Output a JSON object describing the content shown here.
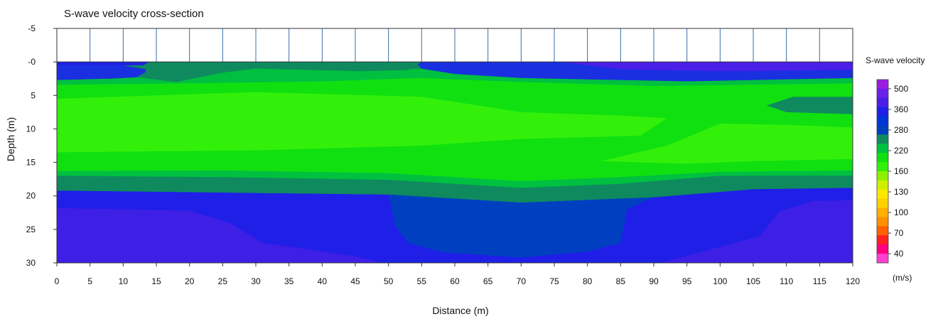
{
  "chart_data": {
    "type": "heatmap",
    "subtype": "filled-contour cross-section",
    "title": "S-wave velocity cross-section",
    "xlabel": "Distance (m)",
    "ylabel": "Depth (m)",
    "xlim": [
      0,
      120
    ],
    "ylim": [
      -5,
      30
    ],
    "y_inverted": true,
    "x_ticks": [
      0,
      5,
      10,
      15,
      20,
      25,
      30,
      35,
      40,
      45,
      50,
      55,
      60,
      65,
      70,
      75,
      80,
      85,
      90,
      95,
      100,
      105,
      110,
      115,
      120
    ],
    "y_ticks": [
      -5,
      0,
      5,
      10,
      15,
      20,
      25,
      30
    ],
    "y_tick_labels": [
      "-5",
      "-0",
      "5",
      "10",
      "15",
      "20",
      "25",
      "30"
    ],
    "grid": false,
    "receivers": {
      "positions": [
        5,
        10,
        15,
        20,
        25,
        30,
        35,
        40,
        45,
        50,
        55,
        60,
        65,
        70,
        75,
        80,
        85,
        90,
        95,
        100,
        105,
        110,
        115
      ],
      "depth_top": -5,
      "depth_bottom": 0
    },
    "colorbar": {
      "title": "S-wave velocity",
      "unit_label": "(m/s)",
      "placement": "right",
      "tick_labels": [
        "500",
        "360",
        "280",
        "220",
        "160",
        "130",
        "100",
        "70",
        "40"
      ],
      "levels": [
        {
          "min": 470,
          "color": "#9b1ee0"
        },
        {
          "min": 430,
          "color": "#6a22e8"
        },
        {
          "min": 390,
          "color": "#4b1ee8"
        },
        {
          "min": 360,
          "color": "#1f1fe8"
        },
        {
          "min": 330,
          "color": "#0036d8"
        },
        {
          "min": 300,
          "color": "#0040c0"
        },
        {
          "min": 280,
          "color": "#0f8a5f"
        },
        {
          "min": 260,
          "color": "#00c040"
        },
        {
          "min": 240,
          "color": "#10e010"
        },
        {
          "min": 220,
          "color": "#33f00a"
        },
        {
          "min": 190,
          "color": "#8cf000"
        },
        {
          "min": 160,
          "color": "#ccf000"
        },
        {
          "min": 145,
          "color": "#ffe800"
        },
        {
          "min": 130,
          "color": "#ffd000"
        },
        {
          "min": 115,
          "color": "#ffb000"
        },
        {
          "min": 100,
          "color": "#ff9000"
        },
        {
          "min": 85,
          "color": "#ff6000"
        },
        {
          "min": 70,
          "color": "#ff2020"
        },
        {
          "min": 55,
          "color": "#ff0080"
        },
        {
          "min": 40,
          "color": "#ff40d0"
        }
      ]
    },
    "regions": [
      {
        "label": "deep high-velocity zone",
        "color": "#3d1fe6",
        "velocity_range": [
          390,
          430
        ],
        "points": [
          [
            0,
            30
          ],
          [
            0,
            21.8
          ],
          [
            20,
            22.2
          ],
          [
            26,
            24
          ],
          [
            31,
            27
          ],
          [
            45,
            29
          ],
          [
            49,
            30
          ]
        ]
      },
      {
        "label": "deep high-velocity zone",
        "color": "#3d1fe6",
        "velocity_range": [
          390,
          430
        ],
        "points": [
          [
            91,
            30
          ],
          [
            100,
            27.6
          ],
          [
            106,
            26
          ],
          [
            109,
            22.3
          ],
          [
            114,
            20.8
          ],
          [
            120,
            20.6
          ],
          [
            120,
            30
          ]
        ]
      },
      {
        "label": "upper-left blue lens",
        "color": "#1a2fe0",
        "velocity_range": [
          330,
          360
        ],
        "points": [
          [
            0,
            0.5
          ],
          [
            10,
            0.5
          ],
          [
            14,
            1.2
          ],
          [
            12,
            2.3
          ],
          [
            8,
            2.5
          ],
          [
            0,
            2.7
          ]
        ]
      },
      {
        "label": "top blue band",
        "color": "#1a2fe0",
        "velocity_range": [
          330,
          360
        ],
        "points": [
          [
            54,
            0
          ],
          [
            120,
            0
          ],
          [
            120,
            2.4
          ],
          [
            95,
            2.9
          ],
          [
            70,
            2.4
          ],
          [
            60,
            1.8
          ],
          [
            55,
            1.0
          ]
        ]
      },
      {
        "label": "top-right purple band",
        "color": "#4a1fe8",
        "velocity_range": [
          360,
          390
        ],
        "points": [
          [
            76,
            0
          ],
          [
            120,
            0
          ],
          [
            120,
            1.2
          ],
          [
            100,
            1.4
          ],
          [
            85,
            1.1
          ]
        ]
      },
      {
        "label": "upper dark-green wedges",
        "color": "#0f8a5f",
        "velocity_range": [
          280,
          300
        ],
        "points": [
          [
            14,
            0
          ],
          [
            27,
            0
          ],
          [
            25,
            1.6
          ],
          [
            18,
            3.0
          ],
          [
            13,
            2.2
          ]
        ]
      },
      {
        "label": "upper dark-green wedges",
        "color": "#0f8a5f",
        "velocity_range": [
          280,
          300
        ],
        "points": [
          [
            45,
            0
          ],
          [
            55,
            0
          ],
          [
            53,
            1.2
          ],
          [
            46,
            1.4
          ]
        ]
      },
      {
        "label": "right dark-green lens",
        "color": "#0f8a5f",
        "velocity_range": [
          280,
          300
        ],
        "points": [
          [
            107,
            6.5
          ],
          [
            111,
            5.2
          ],
          [
            120,
            5.2
          ],
          [
            120,
            7.8
          ],
          [
            110,
            7.5
          ]
        ]
      },
      {
        "label": "central low-velocity core",
        "color": "#33f00a",
        "velocity_range": [
          220,
          240
        ],
        "points": [
          [
            0,
            5.5
          ],
          [
            30,
            4.5
          ],
          [
            55,
            5.2
          ],
          [
            70,
            7.5
          ],
          [
            85,
            8.0
          ],
          [
            92,
            8.4
          ],
          [
            88,
            11.0
          ],
          [
            70,
            11.5
          ],
          [
            55,
            12.5
          ],
          [
            30,
            13.2
          ],
          [
            0,
            13.5
          ]
        ]
      },
      {
        "label": "central low-velocity core",
        "color": "#33f00a",
        "velocity_range": [
          220,
          240
        ],
        "points": [
          [
            100,
            9.2
          ],
          [
            110,
            9.4
          ],
          [
            120,
            9.8
          ],
          [
            120,
            14.5
          ],
          [
            105,
            14.8
          ],
          [
            95,
            15.2
          ],
          [
            82,
            14.8
          ],
          [
            92,
            12.5
          ]
        ]
      }
    ]
  }
}
